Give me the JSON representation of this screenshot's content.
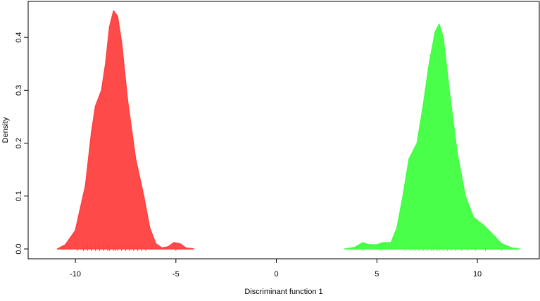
{
  "chart_data": {
    "type": "density",
    "xlabel": "Discriminant function 1",
    "ylabel": "Density",
    "xlim": [
      -12.35,
      13.08
    ],
    "ylim": [
      -0.0186,
      0.468
    ],
    "xticks": [
      -10,
      -5,
      0,
      5,
      10
    ],
    "yticks": [
      {
        "value": 0,
        "label": "0.0"
      },
      0.1,
      0.2,
      0.3,
      0.4
    ],
    "series": [
      {
        "color": "#ff4040",
        "x": [
          -10.9,
          -10.5,
          -10.0,
          -9.5,
          -9.2,
          -9.0,
          -8.7,
          -8.5,
          -8.3,
          -8.1,
          -7.9,
          -7.7,
          -7.4,
          -7.0,
          -6.6,
          -6.3,
          -6.0,
          -5.7,
          -5.4,
          -5.1,
          -4.8,
          -4.5,
          -4.1
        ],
        "values": [
          0,
          0.008,
          0.035,
          0.12,
          0.22,
          0.27,
          0.3,
          0.35,
          0.42,
          0.45,
          0.44,
          0.39,
          0.28,
          0.17,
          0.1,
          0.04,
          0.01,
          0.002,
          0.004,
          0.012,
          0.01,
          0.002,
          0
        ],
        "rug": [
          -9.9,
          -9.6,
          -9.4,
          -9.2,
          -9.0,
          -8.8,
          -8.6,
          -8.4,
          -8.3,
          -8.1,
          -8.0,
          -7.9,
          -7.7,
          -7.5,
          -7.3,
          -7.1,
          -6.9,
          -6.7,
          -6.5,
          -5.0
        ]
      },
      {
        "color": "#40ff40",
        "x": [
          3.4,
          3.9,
          4.3,
          4.6,
          5.0,
          5.3,
          5.7,
          6.0,
          6.3,
          6.6,
          7.0,
          7.3,
          7.6,
          7.9,
          8.1,
          8.3,
          8.6,
          9.0,
          9.4,
          9.8,
          10.3,
          10.7,
          11.2,
          11.7,
          12.1
        ],
        "values": [
          0,
          0.003,
          0.012,
          0.008,
          0.008,
          0.012,
          0.012,
          0.04,
          0.1,
          0.17,
          0.2,
          0.27,
          0.35,
          0.41,
          0.425,
          0.4,
          0.3,
          0.18,
          0.1,
          0.06,
          0.045,
          0.03,
          0.01,
          0.002,
          0
        ],
        "rug": [
          4.3,
          5.2,
          6.4,
          6.7,
          6.9,
          7.1,
          7.3,
          7.5,
          7.7,
          7.8,
          8.0,
          8.1,
          8.3,
          8.5,
          8.7,
          8.9,
          9.2,
          9.5,
          9.9,
          10.4,
          11.2
        ]
      }
    ]
  }
}
